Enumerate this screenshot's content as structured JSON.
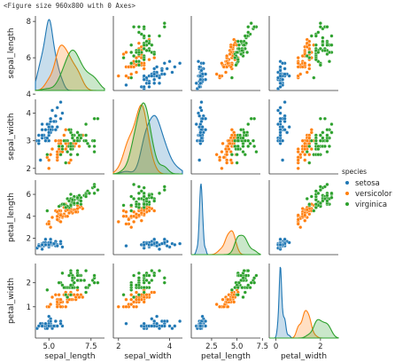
{
  "header": {
    "figure_text": "<Figure size 960x800 with 0 Axes>"
  },
  "colors": {
    "setosa": "#1f77b4",
    "versicolor": "#ff7f0e",
    "virginica": "#2ca02c"
  },
  "chart_data": {
    "type": "scatter",
    "subtype": "pairplot",
    "variables": [
      "sepal_length",
      "sepal_width",
      "petal_length",
      "petal_width"
    ],
    "diagonal": "kde",
    "grid": false,
    "axes": {
      "sepal_length": {
        "range": [
          4.2,
          8.3
        ],
        "ticks": [
          5.0,
          7.5
        ],
        "tick_labels": [
          "5.0",
          "7.5"
        ],
        "ticks_y": [
          4,
          6,
          8
        ],
        "tick_labels_y": [
          "4",
          "6",
          "8"
        ]
      },
      "sepal_width": {
        "range": [
          1.8,
          4.5
        ],
        "ticks": [
          2,
          4
        ],
        "tick_labels": [
          "2",
          "4"
        ],
        "ticks_y": [
          2,
          3,
          4
        ],
        "tick_labels_y": [
          "2",
          "3",
          "4"
        ]
      },
      "petal_length": {
        "range": [
          0.5,
          7.3
        ],
        "ticks": [
          2.5,
          5.0,
          7.5
        ],
        "tick_labels": [
          "2.5",
          "5.0",
          "7.5"
        ],
        "ticks_y": [
          2,
          4,
          6
        ],
        "tick_labels_y": [
          "2",
          "4",
          "6"
        ]
      },
      "petal_width": {
        "range": [
          -0.3,
          2.8
        ],
        "ticks": [
          0,
          2
        ],
        "tick_labels": [
          "0",
          "2"
        ],
        "ticks_y": [
          1,
          2
        ],
        "tick_labels_y": [
          "1",
          "2"
        ]
      }
    },
    "legend": {
      "title": "species",
      "position": "right",
      "entries": [
        "setosa",
        "versicolor",
        "virginica"
      ]
    },
    "series": [
      {
        "name": "setosa",
        "points": [
          [
            5.1,
            3.5,
            1.4,
            0.2
          ],
          [
            4.9,
            3.0,
            1.4,
            0.2
          ],
          [
            4.7,
            3.2,
            1.3,
            0.2
          ],
          [
            4.6,
            3.1,
            1.5,
            0.2
          ],
          [
            5.0,
            3.6,
            1.4,
            0.2
          ],
          [
            5.4,
            3.9,
            1.7,
            0.4
          ],
          [
            4.6,
            3.4,
            1.4,
            0.3
          ],
          [
            5.0,
            3.4,
            1.5,
            0.2
          ],
          [
            4.4,
            2.9,
            1.4,
            0.2
          ],
          [
            4.9,
            3.1,
            1.5,
            0.1
          ],
          [
            5.4,
            3.7,
            1.5,
            0.2
          ],
          [
            4.8,
            3.4,
            1.6,
            0.2
          ],
          [
            4.8,
            3.0,
            1.4,
            0.1
          ],
          [
            4.3,
            3.0,
            1.1,
            0.1
          ],
          [
            5.8,
            4.0,
            1.2,
            0.2
          ],
          [
            5.7,
            4.4,
            1.5,
            0.4
          ],
          [
            5.4,
            3.9,
            1.3,
            0.4
          ],
          [
            5.1,
            3.5,
            1.4,
            0.3
          ],
          [
            5.7,
            3.8,
            1.7,
            0.3
          ],
          [
            5.1,
            3.8,
            1.5,
            0.3
          ],
          [
            5.4,
            3.4,
            1.7,
            0.2
          ],
          [
            5.1,
            3.7,
            1.5,
            0.4
          ],
          [
            4.6,
            3.6,
            1.0,
            0.2
          ],
          [
            5.1,
            3.3,
            1.7,
            0.5
          ],
          [
            4.8,
            3.4,
            1.9,
            0.2
          ],
          [
            5.0,
            3.0,
            1.6,
            0.2
          ],
          [
            5.0,
            3.4,
            1.6,
            0.4
          ],
          [
            5.2,
            3.5,
            1.5,
            0.2
          ],
          [
            5.2,
            3.4,
            1.4,
            0.2
          ],
          [
            4.7,
            3.2,
            1.6,
            0.2
          ],
          [
            4.8,
            3.1,
            1.6,
            0.2
          ],
          [
            5.4,
            3.4,
            1.5,
            0.4
          ],
          [
            5.2,
            4.1,
            1.5,
            0.1
          ],
          [
            5.5,
            4.2,
            1.4,
            0.2
          ],
          [
            4.9,
            3.1,
            1.5,
            0.2
          ],
          [
            5.0,
            3.2,
            1.2,
            0.2
          ],
          [
            5.5,
            3.5,
            1.3,
            0.2
          ],
          [
            4.9,
            3.6,
            1.4,
            0.1
          ],
          [
            4.4,
            3.0,
            1.3,
            0.2
          ],
          [
            5.1,
            3.4,
            1.5,
            0.2
          ],
          [
            5.0,
            3.5,
            1.3,
            0.3
          ],
          [
            4.5,
            2.3,
            1.3,
            0.3
          ],
          [
            4.4,
            3.2,
            1.3,
            0.2
          ],
          [
            5.0,
            3.5,
            1.6,
            0.6
          ],
          [
            5.1,
            3.8,
            1.9,
            0.4
          ],
          [
            4.8,
            3.0,
            1.4,
            0.3
          ],
          [
            5.1,
            3.8,
            1.6,
            0.2
          ],
          [
            4.6,
            3.2,
            1.4,
            0.2
          ],
          [
            5.3,
            3.7,
            1.5,
            0.2
          ],
          [
            5.0,
            3.3,
            1.4,
            0.2
          ]
        ]
      },
      {
        "name": "versicolor",
        "points": [
          [
            7.0,
            3.2,
            4.7,
            1.4
          ],
          [
            6.4,
            3.2,
            4.5,
            1.5
          ],
          [
            6.9,
            3.1,
            4.9,
            1.5
          ],
          [
            5.5,
            2.3,
            4.0,
            1.3
          ],
          [
            6.5,
            2.8,
            4.6,
            1.5
          ],
          [
            5.7,
            2.8,
            4.5,
            1.3
          ],
          [
            6.3,
            3.3,
            4.7,
            1.6
          ],
          [
            4.9,
            2.4,
            3.3,
            1.0
          ],
          [
            6.6,
            2.9,
            4.6,
            1.3
          ],
          [
            5.2,
            2.7,
            3.9,
            1.4
          ],
          [
            5.0,
            2.0,
            3.5,
            1.0
          ],
          [
            5.9,
            3.0,
            4.2,
            1.5
          ],
          [
            6.0,
            2.2,
            4.0,
            1.0
          ],
          [
            6.1,
            2.9,
            4.7,
            1.4
          ],
          [
            5.6,
            2.9,
            3.6,
            1.3
          ],
          [
            6.7,
            3.1,
            4.4,
            1.4
          ],
          [
            5.6,
            3.0,
            4.5,
            1.5
          ],
          [
            5.8,
            2.7,
            4.1,
            1.0
          ],
          [
            6.2,
            2.2,
            4.5,
            1.5
          ],
          [
            5.6,
            2.5,
            3.9,
            1.1
          ],
          [
            5.9,
            3.2,
            4.8,
            1.8
          ],
          [
            6.1,
            2.8,
            4.0,
            1.3
          ],
          [
            6.3,
            2.5,
            4.9,
            1.5
          ],
          [
            6.1,
            2.8,
            4.7,
            1.2
          ],
          [
            6.4,
            2.9,
            4.3,
            1.3
          ],
          [
            6.6,
            3.0,
            4.4,
            1.4
          ],
          [
            6.8,
            2.8,
            4.8,
            1.4
          ],
          [
            6.7,
            3.0,
            5.0,
            1.7
          ],
          [
            6.0,
            2.9,
            4.5,
            1.5
          ],
          [
            5.7,
            2.6,
            3.5,
            1.0
          ],
          [
            5.5,
            2.4,
            3.8,
            1.1
          ],
          [
            5.5,
            2.4,
            3.7,
            1.0
          ],
          [
            5.8,
            2.7,
            3.9,
            1.2
          ],
          [
            6.0,
            2.7,
            5.1,
            1.6
          ],
          [
            5.4,
            3.0,
            4.5,
            1.5
          ],
          [
            6.0,
            3.4,
            4.5,
            1.6
          ],
          [
            6.7,
            3.1,
            4.7,
            1.5
          ],
          [
            6.3,
            2.3,
            4.4,
            1.3
          ],
          [
            5.6,
            3.0,
            4.1,
            1.3
          ],
          [
            5.5,
            2.5,
            4.0,
            1.3
          ],
          [
            5.5,
            2.6,
            4.4,
            1.2
          ],
          [
            6.1,
            3.0,
            4.6,
            1.4
          ],
          [
            5.8,
            2.6,
            4.0,
            1.2
          ],
          [
            5.0,
            2.3,
            3.3,
            1.0
          ],
          [
            5.6,
            2.7,
            4.2,
            1.3
          ],
          [
            5.7,
            3.0,
            4.2,
            1.2
          ],
          [
            5.7,
            2.9,
            4.2,
            1.3
          ],
          [
            6.2,
            2.9,
            4.3,
            1.3
          ],
          [
            5.1,
            2.5,
            3.0,
            1.1
          ],
          [
            5.7,
            2.8,
            4.1,
            1.3
          ]
        ]
      },
      {
        "name": "virginica",
        "points": [
          [
            6.3,
            3.3,
            6.0,
            2.5
          ],
          [
            5.8,
            2.7,
            5.1,
            1.9
          ],
          [
            7.1,
            3.0,
            5.9,
            2.1
          ],
          [
            6.3,
            2.9,
            5.6,
            1.8
          ],
          [
            6.5,
            3.0,
            5.8,
            2.2
          ],
          [
            7.6,
            3.0,
            6.6,
            2.1
          ],
          [
            4.9,
            2.5,
            4.5,
            1.7
          ],
          [
            7.3,
            2.9,
            6.3,
            1.8
          ],
          [
            6.7,
            2.5,
            5.8,
            1.8
          ],
          [
            7.2,
            3.6,
            6.1,
            2.5
          ],
          [
            6.5,
            3.2,
            5.1,
            2.0
          ],
          [
            6.4,
            2.7,
            5.3,
            1.9
          ],
          [
            6.8,
            3.0,
            5.5,
            2.1
          ],
          [
            5.7,
            2.5,
            5.0,
            2.0
          ],
          [
            5.8,
            2.8,
            5.1,
            2.4
          ],
          [
            6.4,
            3.2,
            5.3,
            2.3
          ],
          [
            6.5,
            3.0,
            5.5,
            1.8
          ],
          [
            7.7,
            3.8,
            6.7,
            2.2
          ],
          [
            7.7,
            2.6,
            6.9,
            2.3
          ],
          [
            6.0,
            2.2,
            5.0,
            1.5
          ],
          [
            6.9,
            3.2,
            5.7,
            2.3
          ],
          [
            5.6,
            2.8,
            4.9,
            2.0
          ],
          [
            7.7,
            2.8,
            6.7,
            2.0
          ],
          [
            6.3,
            2.7,
            4.9,
            1.8
          ],
          [
            6.7,
            3.3,
            5.7,
            2.1
          ],
          [
            7.2,
            3.2,
            6.0,
            1.8
          ],
          [
            6.2,
            2.8,
            4.8,
            1.8
          ],
          [
            6.1,
            3.0,
            4.9,
            1.8
          ],
          [
            6.4,
            2.8,
            5.6,
            2.1
          ],
          [
            7.2,
            3.0,
            5.8,
            1.6
          ],
          [
            7.4,
            2.8,
            6.1,
            1.9
          ],
          [
            7.9,
            3.8,
            6.4,
            2.0
          ],
          [
            6.4,
            2.8,
            5.6,
            2.2
          ],
          [
            6.3,
            2.8,
            5.1,
            1.5
          ],
          [
            6.1,
            2.6,
            5.6,
            1.4
          ],
          [
            7.7,
            3.0,
            6.1,
            2.3
          ],
          [
            6.3,
            3.4,
            5.6,
            2.4
          ],
          [
            6.4,
            3.1,
            5.5,
            1.8
          ],
          [
            6.0,
            3.0,
            4.8,
            1.8
          ],
          [
            6.9,
            3.1,
            5.4,
            2.1
          ],
          [
            6.7,
            3.1,
            5.6,
            2.4
          ],
          [
            6.9,
            3.1,
            5.1,
            2.3
          ],
          [
            5.8,
            2.7,
            5.1,
            1.9
          ],
          [
            6.8,
            3.2,
            5.9,
            2.3
          ],
          [
            6.7,
            3.3,
            5.7,
            2.5
          ],
          [
            6.7,
            3.0,
            5.2,
            2.3
          ],
          [
            6.3,
            2.5,
            5.0,
            1.9
          ],
          [
            6.5,
            3.0,
            5.2,
            2.0
          ],
          [
            6.2,
            3.4,
            5.4,
            2.3
          ],
          [
            5.9,
            3.0,
            5.1,
            1.8
          ]
        ]
      }
    ]
  }
}
